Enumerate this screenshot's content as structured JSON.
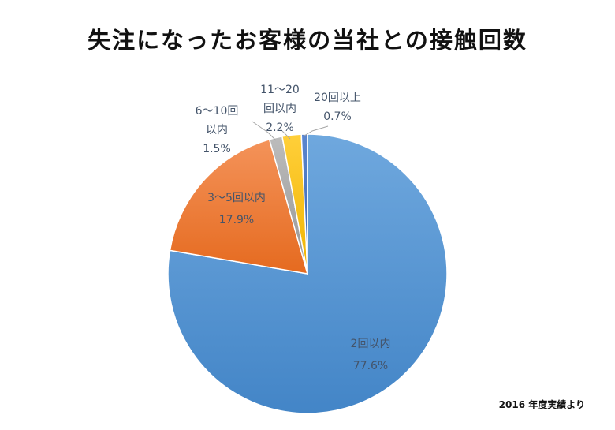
{
  "chart_data": {
    "type": "pie",
    "title": "失注になったお客様の当社との接触回数",
    "slices": [
      {
        "label": "2回以内",
        "value": 77.6,
        "value_label": "77.6%",
        "color": "#5b9bd5"
      },
      {
        "label": "3〜5回以内",
        "value": 17.9,
        "value_label": "17.9%",
        "color": "#ed7d31"
      },
      {
        "label": "6〜10回以内",
        "value": 1.5,
        "value_label": "1.5%",
        "color": "#a5a5a5"
      },
      {
        "label": "11〜20回以内",
        "value": 2.2,
        "value_label": "2.2%",
        "color": "#ffc000"
      },
      {
        "label": "20回以上",
        "value": 0.7,
        "value_label": "0.7%",
        "color": "#4472c4"
      }
    ],
    "start_angle_deg": 0,
    "direction": "clockwise",
    "footnote": "2016 年度実績より"
  }
}
